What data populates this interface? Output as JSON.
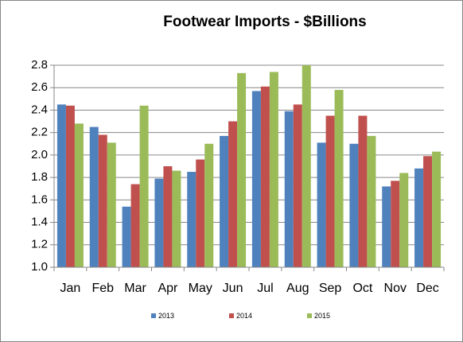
{
  "chart_data": {
    "type": "bar",
    "title": "Footwear Imports - $Billions",
    "categories": [
      "Jan",
      "Feb",
      "Mar",
      "Apr",
      "May",
      "Jun",
      "Jul",
      "Aug",
      "Sep",
      "Oct",
      "Nov",
      "Dec"
    ],
    "series": [
      {
        "name": "2013",
        "color": "#4f81bd",
        "values": [
          2.45,
          2.25,
          1.54,
          1.79,
          1.85,
          2.17,
          2.57,
          2.39,
          2.11,
          2.1,
          1.72,
          1.88
        ]
      },
      {
        "name": "2014",
        "color": "#c0504d",
        "values": [
          2.44,
          2.18,
          1.74,
          1.9,
          1.96,
          2.3,
          2.61,
          2.45,
          2.35,
          2.35,
          1.77,
          1.99
        ]
      },
      {
        "name": "2015",
        "color": "#9bbb59",
        "values": [
          2.28,
          2.11,
          2.44,
          1.86,
          2.1,
          2.73,
          2.74,
          2.8,
          2.58,
          2.17,
          1.84,
          2.03
        ]
      }
    ],
    "ylim": [
      1,
      2.8
    ],
    "yticks": [
      {
        "value": 1,
        "label": "1.0"
      },
      1.2,
      1.4,
      1.6,
      1.8,
      {
        "value": 2,
        "label": "2.0"
      },
      2.2,
      2.4,
      2.6,
      2.8
    ],
    "grid": true,
    "legend": "bottom"
  }
}
